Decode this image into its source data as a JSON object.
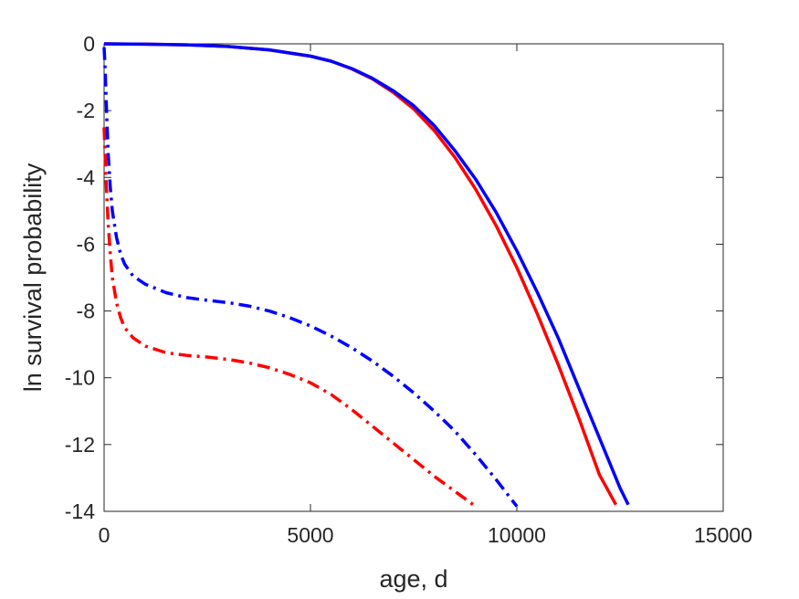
{
  "chart_data": {
    "type": "line",
    "title": "",
    "xlabel": "age, d",
    "ylabel": "ln survival probability",
    "xlim": [
      0,
      15000
    ],
    "ylim": [
      -14,
      0
    ],
    "xticks": [
      0,
      5000,
      10000,
      15000
    ],
    "yticks": [
      0,
      -2,
      -4,
      -6,
      -8,
      -10,
      -12,
      -14
    ],
    "grid": false,
    "legend": "none",
    "series": [
      {
        "color": "#ff0000",
        "style": "solid",
        "x": [
          0,
          1000,
          2000,
          3000,
          4000,
          5000,
          5500,
          6000,
          6500,
          7000,
          7500,
          8000,
          8500,
          9000,
          9500,
          10000,
          10500,
          11000,
          11500,
          12000,
          12400
        ],
        "y": [
          0,
          -0.01,
          -0.03,
          -0.08,
          -0.18,
          -0.37,
          -0.52,
          -0.75,
          -1.05,
          -1.45,
          -1.95,
          -2.6,
          -3.4,
          -4.35,
          -5.45,
          -6.7,
          -8.1,
          -9.6,
          -11.2,
          -12.9,
          -13.8
        ]
      },
      {
        "color": "#0000ff",
        "style": "solid",
        "x": [
          0,
          1000,
          2000,
          3000,
          4000,
          5000,
          5500,
          6000,
          6500,
          7000,
          7500,
          8000,
          8500,
          9000,
          9500,
          10000,
          10500,
          11000,
          11500,
          12000,
          12500,
          12700
        ],
        "y": [
          0,
          -0.01,
          -0.03,
          -0.08,
          -0.18,
          -0.37,
          -0.52,
          -0.74,
          -1.03,
          -1.4,
          -1.85,
          -2.45,
          -3.2,
          -4.05,
          -5.05,
          -6.2,
          -7.45,
          -8.8,
          -10.3,
          -11.8,
          -13.3,
          -13.8
        ]
      },
      {
        "color": "#ff0000",
        "style": "dashdot",
        "x": [
          0,
          30,
          60,
          100,
          150,
          200,
          300,
          400,
          500,
          700,
          1000,
          1500,
          2000,
          2500,
          3000,
          3500,
          4000,
          4500,
          5000,
          5500,
          6000,
          6500,
          7000,
          7500,
          8000,
          8500,
          9000
        ],
        "y": [
          -2.5,
          -3.5,
          -4.4,
          -5.4,
          -6.3,
          -7.0,
          -7.75,
          -8.2,
          -8.5,
          -8.8,
          -9.05,
          -9.25,
          -9.33,
          -9.38,
          -9.45,
          -9.55,
          -9.7,
          -9.9,
          -10.15,
          -10.5,
          -10.95,
          -11.45,
          -11.95,
          -12.45,
          -12.95,
          -13.4,
          -13.85
        ]
      },
      {
        "color": "#0000ff",
        "style": "dashdot",
        "x": [
          0,
          20,
          40,
          70,
          100,
          150,
          200,
          300,
          400,
          500,
          700,
          1000,
          1500,
          2000,
          2500,
          3000,
          3500,
          4000,
          4500,
          5000,
          5500,
          6000,
          6500,
          7000,
          7500,
          8000,
          8500,
          9000,
          9500,
          10000
        ],
        "y": [
          -0.1,
          -0.6,
          -1.3,
          -2.4,
          -3.3,
          -4.3,
          -5.0,
          -5.8,
          -6.3,
          -6.6,
          -6.95,
          -7.2,
          -7.45,
          -7.6,
          -7.68,
          -7.75,
          -7.85,
          -8.0,
          -8.2,
          -8.45,
          -8.75,
          -9.1,
          -9.5,
          -9.95,
          -10.45,
          -11.0,
          -11.6,
          -12.3,
          -13.05,
          -13.85
        ]
      }
    ]
  }
}
